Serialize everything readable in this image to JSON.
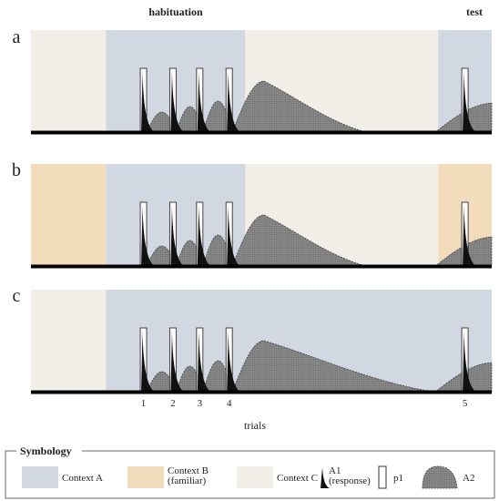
{
  "phases": {
    "habituation": "habituation",
    "test": "test"
  },
  "panels": [
    {
      "letter": "a",
      "contexts": [
        {
          "ctx": "C",
          "from": 0,
          "to": 2.8
        },
        {
          "ctx": "A",
          "from": 2.8,
          "to": 8
        },
        {
          "ctx": "C",
          "from": 8,
          "to": 15.2
        },
        {
          "ctx": "A",
          "from": 15.2,
          "to": 17.2
        }
      ],
      "a2_decay_end": 12.5
    },
    {
      "letter": "b",
      "contexts": [
        {
          "ctx": "B",
          "from": 0,
          "to": 2.8
        },
        {
          "ctx": "A",
          "from": 2.8,
          "to": 8
        },
        {
          "ctx": "C",
          "from": 8,
          "to": 15.2
        },
        {
          "ctx": "B",
          "from": 15.2,
          "to": 17.2
        }
      ],
      "a2_decay_end": 12.5
    },
    {
      "letter": "c",
      "contexts": [
        {
          "ctx": "C",
          "from": 0,
          "to": 2.8
        },
        {
          "ctx": "A",
          "from": 2.8,
          "to": 17.2
        }
      ],
      "a2_decay_end": 15.0
    }
  ],
  "trials": [
    {
      "label": "1",
      "t": 4.2
    },
    {
      "label": "2",
      "t": 5.3
    },
    {
      "label": "3",
      "t": 6.3
    },
    {
      "label": "4",
      "t": 7.4
    },
    {
      "label": "5",
      "t": 16.2
    }
  ],
  "x_axis_label": "trials",
  "context_colors": {
    "A": "#d2d8e2",
    "B": "#f3dcbc",
    "C": "#f2efe9"
  },
  "legend": {
    "title": "Symbology",
    "items": [
      {
        "key": "A",
        "type": "swatch",
        "label": "Context A"
      },
      {
        "key": "B",
        "type": "swatch",
        "label": "Context B",
        "sublabel": "(familiar)"
      },
      {
        "key": "C",
        "type": "swatch",
        "label": "Context C"
      },
      {
        "key": "a1",
        "type": "a1-icon",
        "label": "A1",
        "sublabel": "(response)"
      },
      {
        "key": "p1",
        "type": "p1-icon",
        "label": "p1"
      },
      {
        "key": "a2",
        "type": "a2-icon",
        "label": "A2"
      }
    ]
  }
}
